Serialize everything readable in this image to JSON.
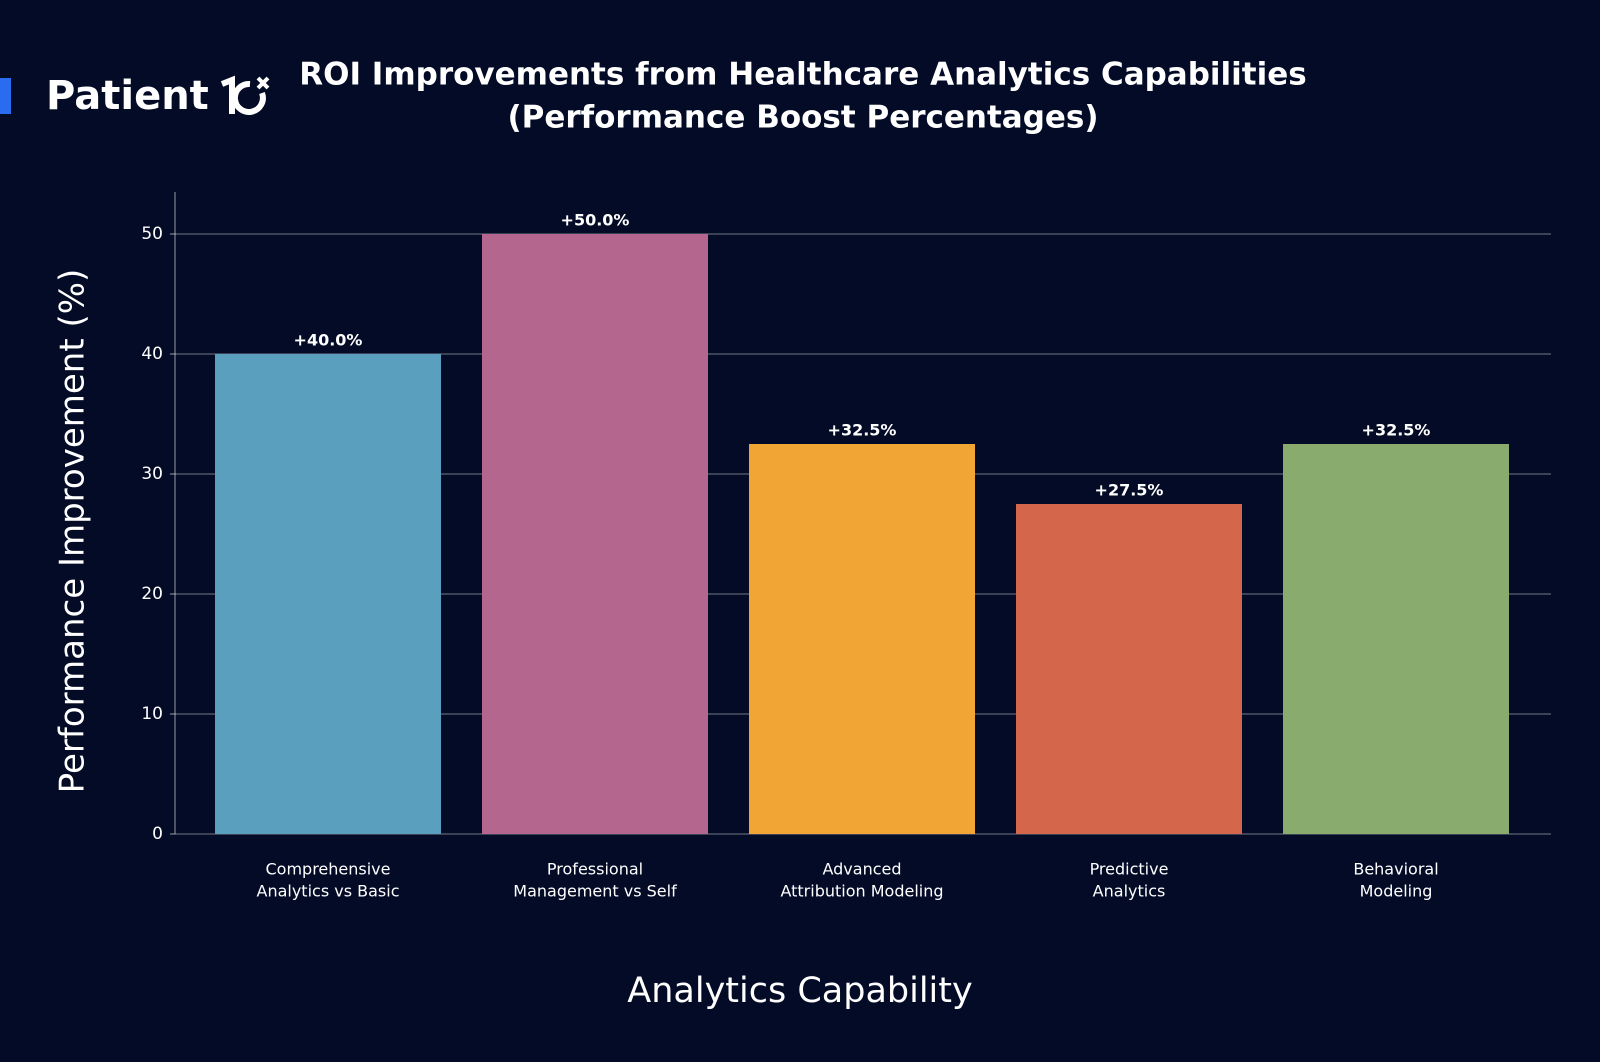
{
  "brand": "Patient",
  "chart_data": {
    "type": "bar",
    "title": [
      "ROI Improvements from Healthcare Analytics Capabilities",
      "(Performance Boost Percentages)"
    ],
    "x_label": "Analytics Capability",
    "y_label": "Performance Improvement (%)",
    "categories": [
      [
        "Comprehensive",
        "Analytics vs Basic"
      ],
      [
        "Professional",
        "Management vs Self"
      ],
      [
        "Advanced",
        "Attribution Modeling"
      ],
      [
        "Predictive",
        "Analytics"
      ],
      [
        "Behavioral",
        "Modeling"
      ]
    ],
    "values": [
      40,
      50,
      32.5,
      27.5,
      32.5
    ],
    "value_labels": [
      "+40.0%",
      "+50.0%",
      "+32.5%",
      "+27.5%",
      "+32.5%"
    ],
    "colors": [
      "#5a9fbd",
      "#b5668f",
      "#f0a534",
      "#d4664c",
      "#8aab6e"
    ],
    "ylim": [
      0,
      53.5
    ],
    "yticks": [
      0,
      10,
      20,
      30,
      40,
      50
    ],
    "grid": true
  }
}
